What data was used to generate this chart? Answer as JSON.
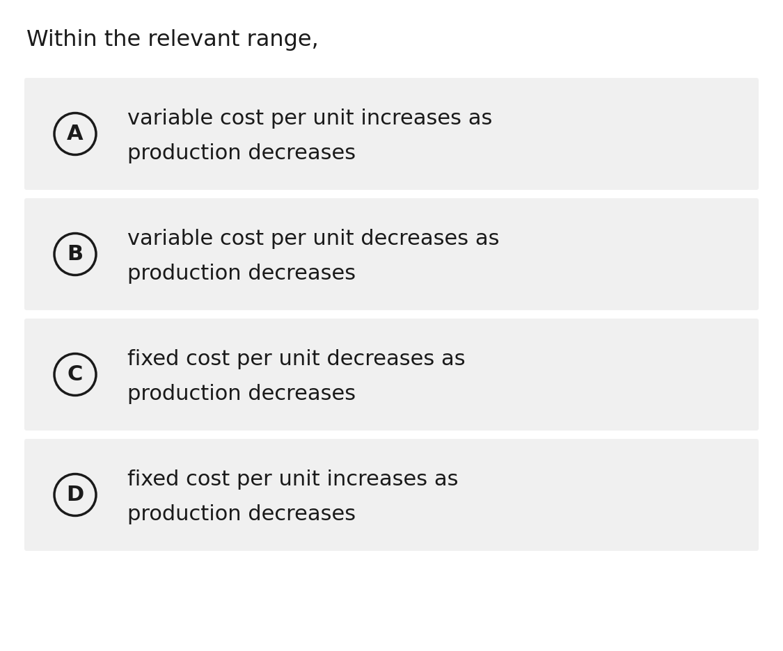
{
  "title": "Within the relevant range,",
  "title_fontsize": 23,
  "title_color": "#1a1a1a",
  "background_color": "#ffffff",
  "box_background": "#f0f0f0",
  "options": [
    {
      "label": "A",
      "line1": "variable cost per unit increases as",
      "line2": "production decreases"
    },
    {
      "label": "B",
      "line1": "variable cost per unit decreases as",
      "line2": "production decreases"
    },
    {
      "label": "C",
      "line1": "fixed cost per unit decreases as",
      "line2": "production decreases"
    },
    {
      "label": "D",
      "line1": "fixed cost per unit increases as",
      "line2": "production decreases"
    }
  ],
  "option_fontsize": 22,
  "label_fontsize": 22,
  "text_color": "#1a1a1a",
  "circle_linewidth": 2.5,
  "circle_color": "#1a1a1a",
  "circle_fill": "#f0f0f0"
}
